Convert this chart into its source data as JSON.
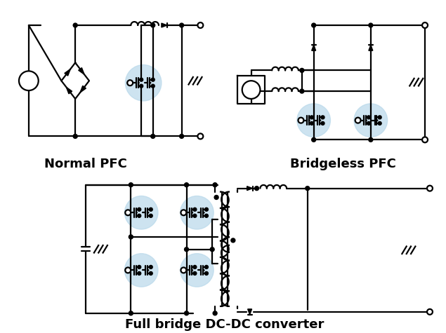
{
  "labels": {
    "normal_pfc": "Normal PFC",
    "bridgeless_pfc": "Bridgeless PFC",
    "full_bridge": "Full bridge DC-DC converter"
  },
  "label_fontsize": 13,
  "label_fontweight": "bold",
  "background_color": "#ffffff",
  "line_color": "#000000",
  "highlight_color": "#b8d8ea",
  "highlight_alpha": 0.7,
  "line_width": 1.6,
  "fig_width": 6.35,
  "fig_height": 4.75,
  "dpi": 100
}
